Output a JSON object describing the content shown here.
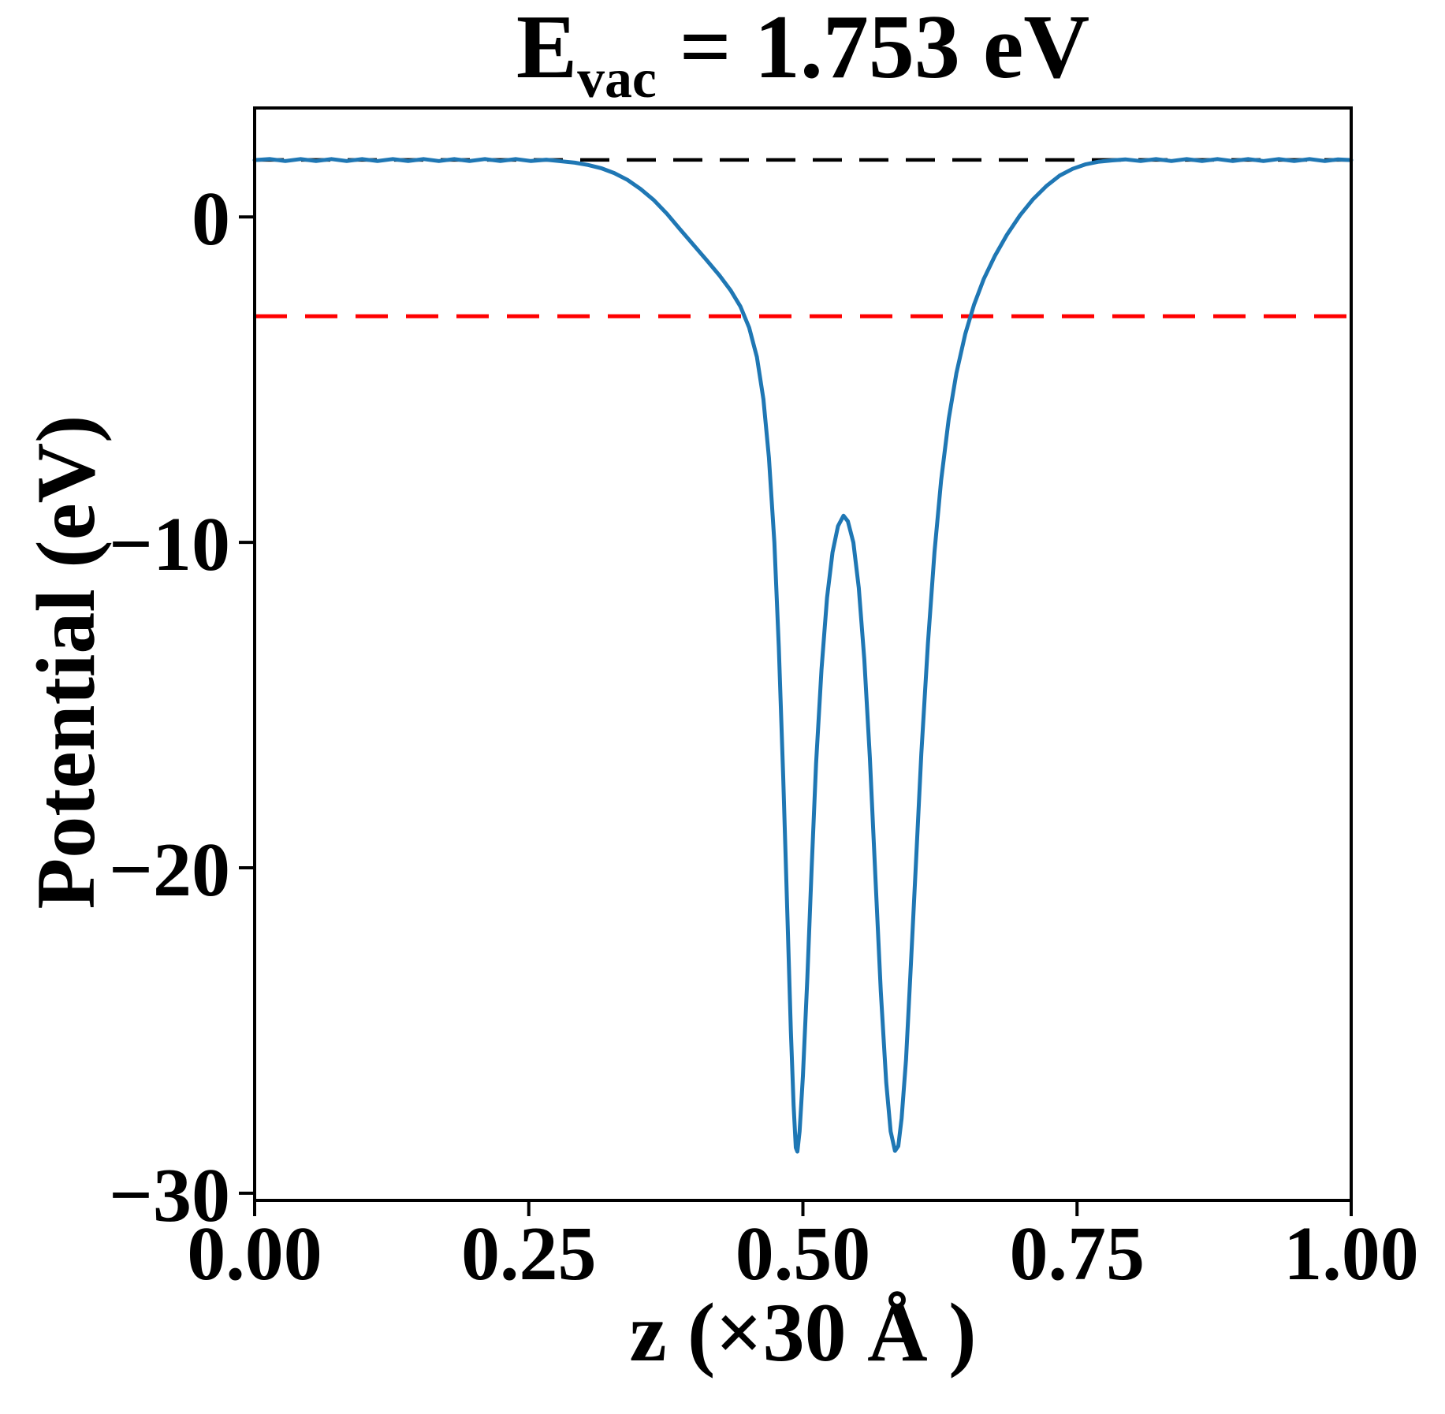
{
  "title": {
    "base": "E",
    "sub": "vac",
    "rest": " = 1.753 eV"
  },
  "chart_data": {
    "type": "line",
    "title": "E_vac = 1.753 eV",
    "xlabel": "z (×30 Å )",
    "ylabel": "Potential (eV)",
    "xlim": [
      0.0,
      1.0
    ],
    "ylim": [
      -30.22,
      3.35
    ],
    "grid": false,
    "legend": "none",
    "background": "#ffffff",
    "x_ticks": {
      "values": [
        0.0,
        0.25,
        0.5,
        0.75,
        1.0
      ],
      "labels": [
        "0.00",
        "0.25",
        "0.50",
        "0.75",
        "1.00"
      ]
    },
    "y_ticks": {
      "values": [
        0,
        -10,
        -20,
        -30
      ],
      "labels": [
        "0",
        "−10",
        "−20",
        "−30"
      ]
    },
    "annotations": {
      "E_vac_eV": 1.753
    },
    "series": [
      {
        "name": "planar-averaged-potential",
        "type": "curve",
        "color": "#1f77b4",
        "linestyle": "solid",
        "linewidth": 5,
        "points": [
          [
            0.0,
            1.75
          ],
          [
            0.014,
            1.78
          ],
          [
            0.028,
            1.72
          ],
          [
            0.042,
            1.78
          ],
          [
            0.056,
            1.72
          ],
          [
            0.07,
            1.78
          ],
          [
            0.084,
            1.72
          ],
          [
            0.098,
            1.78
          ],
          [
            0.112,
            1.72
          ],
          [
            0.126,
            1.78
          ],
          [
            0.14,
            1.72
          ],
          [
            0.154,
            1.78
          ],
          [
            0.168,
            1.72
          ],
          [
            0.182,
            1.78
          ],
          [
            0.196,
            1.72
          ],
          [
            0.21,
            1.78
          ],
          [
            0.224,
            1.72
          ],
          [
            0.238,
            1.78
          ],
          [
            0.252,
            1.72
          ],
          [
            0.266,
            1.76
          ],
          [
            0.28,
            1.71
          ],
          [
            0.292,
            1.67
          ],
          [
            0.304,
            1.6
          ],
          [
            0.316,
            1.5
          ],
          [
            0.328,
            1.35
          ],
          [
            0.34,
            1.14
          ],
          [
            0.352,
            0.86
          ],
          [
            0.364,
            0.52
          ],
          [
            0.376,
            0.1
          ],
          [
            0.388,
            -0.38
          ],
          [
            0.4,
            -0.85
          ],
          [
            0.412,
            -1.32
          ],
          [
            0.424,
            -1.8
          ],
          [
            0.434,
            -2.25
          ],
          [
            0.443,
            -2.75
          ],
          [
            0.451,
            -3.4
          ],
          [
            0.458,
            -4.3
          ],
          [
            0.464,
            -5.6
          ],
          [
            0.469,
            -7.4
          ],
          [
            0.474,
            -10.0
          ],
          [
            0.478,
            -13.2
          ],
          [
            0.482,
            -17.2
          ],
          [
            0.486,
            -21.6
          ],
          [
            0.489,
            -25.0
          ],
          [
            0.4915,
            -27.3
          ],
          [
            0.4935,
            -28.6
          ],
          [
            0.495,
            -28.72
          ],
          [
            0.497,
            -28.1
          ],
          [
            0.5,
            -26.4
          ],
          [
            0.504,
            -23.4
          ],
          [
            0.508,
            -20.0
          ],
          [
            0.512,
            -16.8
          ],
          [
            0.517,
            -13.9
          ],
          [
            0.522,
            -11.7
          ],
          [
            0.527,
            -10.3
          ],
          [
            0.532,
            -9.5
          ],
          [
            0.537,
            -9.18
          ],
          [
            0.541,
            -9.35
          ],
          [
            0.546,
            -10.0
          ],
          [
            0.551,
            -11.4
          ],
          [
            0.556,
            -13.6
          ],
          [
            0.561,
            -16.6
          ],
          [
            0.566,
            -20.2
          ],
          [
            0.571,
            -23.8
          ],
          [
            0.576,
            -26.6
          ],
          [
            0.58,
            -28.1
          ],
          [
            0.584,
            -28.7
          ],
          [
            0.587,
            -28.55
          ],
          [
            0.59,
            -27.7
          ],
          [
            0.594,
            -25.9
          ],
          [
            0.598,
            -23.3
          ],
          [
            0.603,
            -19.9
          ],
          [
            0.608,
            -16.5
          ],
          [
            0.614,
            -13.1
          ],
          [
            0.62,
            -10.3
          ],
          [
            0.626,
            -8.1
          ],
          [
            0.633,
            -6.2
          ],
          [
            0.64,
            -4.8
          ],
          [
            0.648,
            -3.6
          ],
          [
            0.656,
            -2.7
          ],
          [
            0.665,
            -1.9
          ],
          [
            0.675,
            -1.2
          ],
          [
            0.686,
            -0.55
          ],
          [
            0.698,
            0.05
          ],
          [
            0.71,
            0.55
          ],
          [
            0.722,
            0.95
          ],
          [
            0.734,
            1.27
          ],
          [
            0.746,
            1.48
          ],
          [
            0.758,
            1.62
          ],
          [
            0.77,
            1.7
          ],
          [
            0.782,
            1.74
          ],
          [
            0.794,
            1.77
          ],
          [
            0.808,
            1.72
          ],
          [
            0.822,
            1.78
          ],
          [
            0.836,
            1.72
          ],
          [
            0.85,
            1.78
          ],
          [
            0.864,
            1.72
          ],
          [
            0.878,
            1.78
          ],
          [
            0.892,
            1.72
          ],
          [
            0.906,
            1.78
          ],
          [
            0.92,
            1.72
          ],
          [
            0.934,
            1.78
          ],
          [
            0.948,
            1.72
          ],
          [
            0.962,
            1.78
          ],
          [
            0.976,
            1.72
          ],
          [
            0.988,
            1.77
          ],
          [
            1.0,
            1.75
          ]
        ]
      },
      {
        "name": "vacuum-level",
        "type": "hline",
        "color": "#000000",
        "linestyle": "dashed",
        "linewidth": 4.5,
        "dash": [
          37,
          22
        ],
        "y": 1.753
      },
      {
        "name": "reference-level",
        "type": "hline",
        "color": "#ff0000",
        "linestyle": "dashed",
        "linewidth": 5,
        "dash": [
          41,
          23
        ],
        "y": -3.05
      }
    ]
  }
}
